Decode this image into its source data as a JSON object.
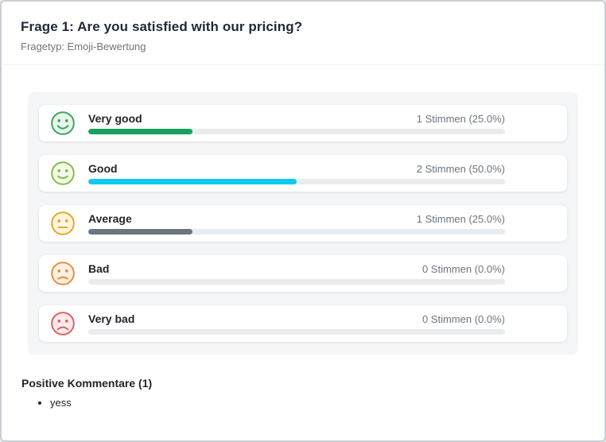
{
  "header": {
    "title": "Frage 1: Are you satisfied with our pricing?",
    "subtitle": "Fragetyp: Emoji-Bewertung"
  },
  "results": [
    {
      "label": "Very good",
      "votes": "1 Stimmen (25.0%)",
      "percent": 25.0,
      "bar_color": "#18a05e",
      "emoji": {
        "mood": "very-happy",
        "color": "#33a457",
        "bg": "#e9f6ec"
      }
    },
    {
      "label": "Good",
      "votes": "2 Stimmen (50.0%)",
      "percent": 50.0,
      "bar_color": "#0dcaf0",
      "emoji": {
        "mood": "happy",
        "color": "#82b944",
        "bg": "#f3f9e9"
      }
    },
    {
      "label": "Average",
      "votes": "1 Stimmen (25.0%)",
      "percent": 25.0,
      "bar_color": "#6c757d",
      "emoji": {
        "mood": "neutral",
        "color": "#e5a41f",
        "bg": "#fdf5e0"
      }
    },
    {
      "label": "Bad",
      "votes": "0 Stimmen (0.0%)",
      "percent": 0.0,
      "bar_color": "#6c757d",
      "emoji": {
        "mood": "sad",
        "color": "#ec8а35",
        "bg": "#fdf0e4"
      }
    },
    {
      "label": "Very bad",
      "votes": "0 Stimmen (0.0%)",
      "percent": 0.0,
      "bar_color": "#6c757d",
      "emoji": {
        "mood": "very-sad",
        "color": "#df5a5e",
        "bg": "#fcebea"
      }
    }
  ],
  "comments": {
    "title": "Positive Kommentare (1)",
    "items": [
      "yess"
    ]
  },
  "chart_data": {
    "type": "bar",
    "orientation": "horizontal",
    "title": "Frage 1: Are you satisfied with our pricing?",
    "subtitle": "Fragetyp: Emoji-Bewertung",
    "categories": [
      "Very good",
      "Good",
      "Average",
      "Bad",
      "Very bad"
    ],
    "series": [
      {
        "name": "Stimmen",
        "values": [
          1,
          2,
          1,
          0,
          0
        ]
      },
      {
        "name": "Prozent",
        "values": [
          25.0,
          50.0,
          25.0,
          0.0,
          0.0
        ]
      }
    ],
    "value_labels": [
      "1 Stimmen (25.0%)",
      "2 Stimmen (50.0%)",
      "1 Stimmen (25.0%)",
      "0 Stimmen (0.0%)",
      "0 Stimmen (0.0%)"
    ],
    "xlim": [
      0,
      100
    ],
    "grid": false,
    "legend": "none",
    "bar_colors": [
      "#18a05e",
      "#0dcaf0",
      "#6c757d",
      "#6c757d",
      "#6c757d"
    ],
    "track_color": "#e9ecef"
  }
}
